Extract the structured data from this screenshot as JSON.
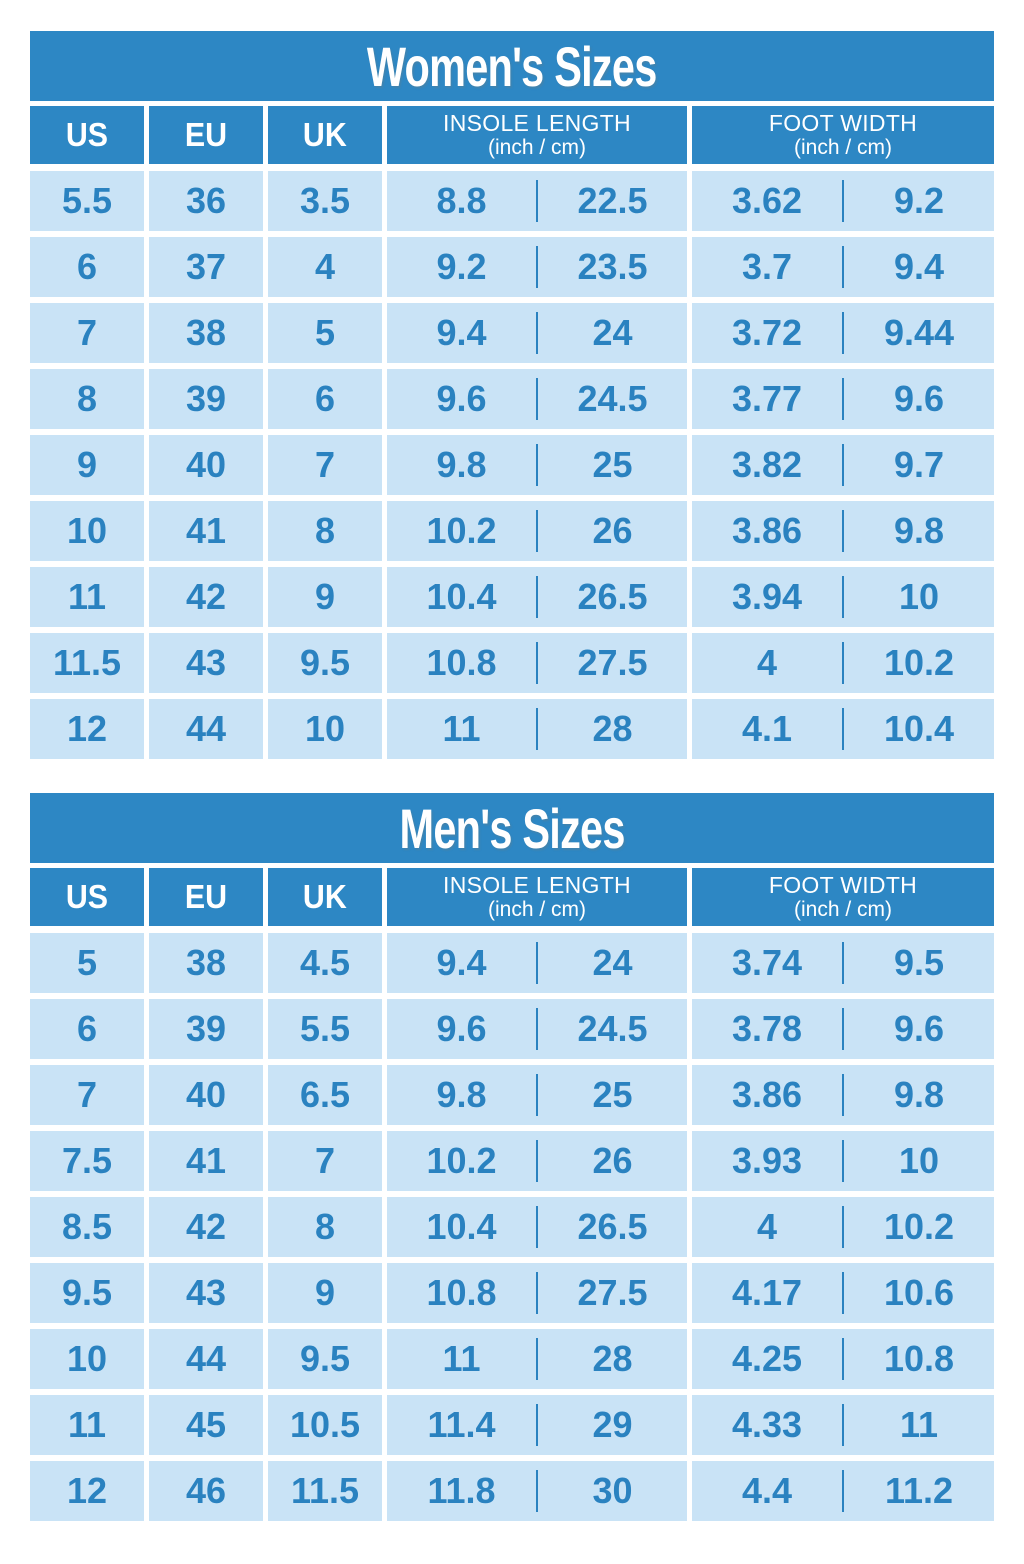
{
  "colors": {
    "header_blue": "#2d87c4",
    "row_light_blue": "#c9e3f6",
    "value_text_blue": "#2a82c0",
    "title_text": "#ffffff",
    "background": "#ffffff"
  },
  "chart_data": [
    {
      "type": "table",
      "title": "Women's Sizes",
      "columns": [
        "US",
        "EU",
        "UK",
        "INSOLE LENGTH",
        "FOOT WIDTH"
      ],
      "column_units": [
        "",
        "",
        "",
        "(inch / cm)",
        "(inch / cm)"
      ],
      "rows": [
        [
          "5.5",
          "36",
          "3.5",
          "8.8",
          "22.5",
          "3.62",
          "9.2"
        ],
        [
          "6",
          "37",
          "4",
          "9.2",
          "23.5",
          "3.7",
          "9.4"
        ],
        [
          "7",
          "38",
          "5",
          "9.4",
          "24",
          "3.72",
          "9.44"
        ],
        [
          "8",
          "39",
          "6",
          "9.6",
          "24.5",
          "3.77",
          "9.6"
        ],
        [
          "9",
          "40",
          "7",
          "9.8",
          "25",
          "3.82",
          "9.7"
        ],
        [
          "10",
          "41",
          "8",
          "10.2",
          "26",
          "3.86",
          "9.8"
        ],
        [
          "11",
          "42",
          "9",
          "10.4",
          "26.5",
          "3.94",
          "10"
        ],
        [
          "11.5",
          "43",
          "9.5",
          "10.8",
          "27.5",
          "4",
          "10.2"
        ],
        [
          "12",
          "44",
          "10",
          "11",
          "28",
          "4.1",
          "10.4"
        ]
      ]
    },
    {
      "type": "table",
      "title": "Men's Sizes",
      "columns": [
        "US",
        "EU",
        "UK",
        "INSOLE LENGTH",
        "FOOT WIDTH"
      ],
      "column_units": [
        "",
        "",
        "",
        "(inch / cm)",
        "(inch / cm)"
      ],
      "rows": [
        [
          "5",
          "38",
          "4.5",
          "9.4",
          "24",
          "3.74",
          "9.5"
        ],
        [
          "6",
          "39",
          "5.5",
          "9.6",
          "24.5",
          "3.78",
          "9.6"
        ],
        [
          "7",
          "40",
          "6.5",
          "9.8",
          "25",
          "3.86",
          "9.8"
        ],
        [
          "7.5",
          "41",
          "7",
          "10.2",
          "26",
          "3.93",
          "10"
        ],
        [
          "8.5",
          "42",
          "8",
          "10.4",
          "26.5",
          "4",
          "10.2"
        ],
        [
          "9.5",
          "43",
          "9",
          "10.8",
          "27.5",
          "4.17",
          "10.6"
        ],
        [
          "10",
          "44",
          "9.5",
          "11",
          "28",
          "4.25",
          "10.8"
        ],
        [
          "11",
          "45",
          "10.5",
          "11.4",
          "29",
          "4.33",
          "11"
        ],
        [
          "12",
          "46",
          "11.5",
          "11.8",
          "30",
          "4.4",
          "11.2"
        ]
      ]
    }
  ]
}
